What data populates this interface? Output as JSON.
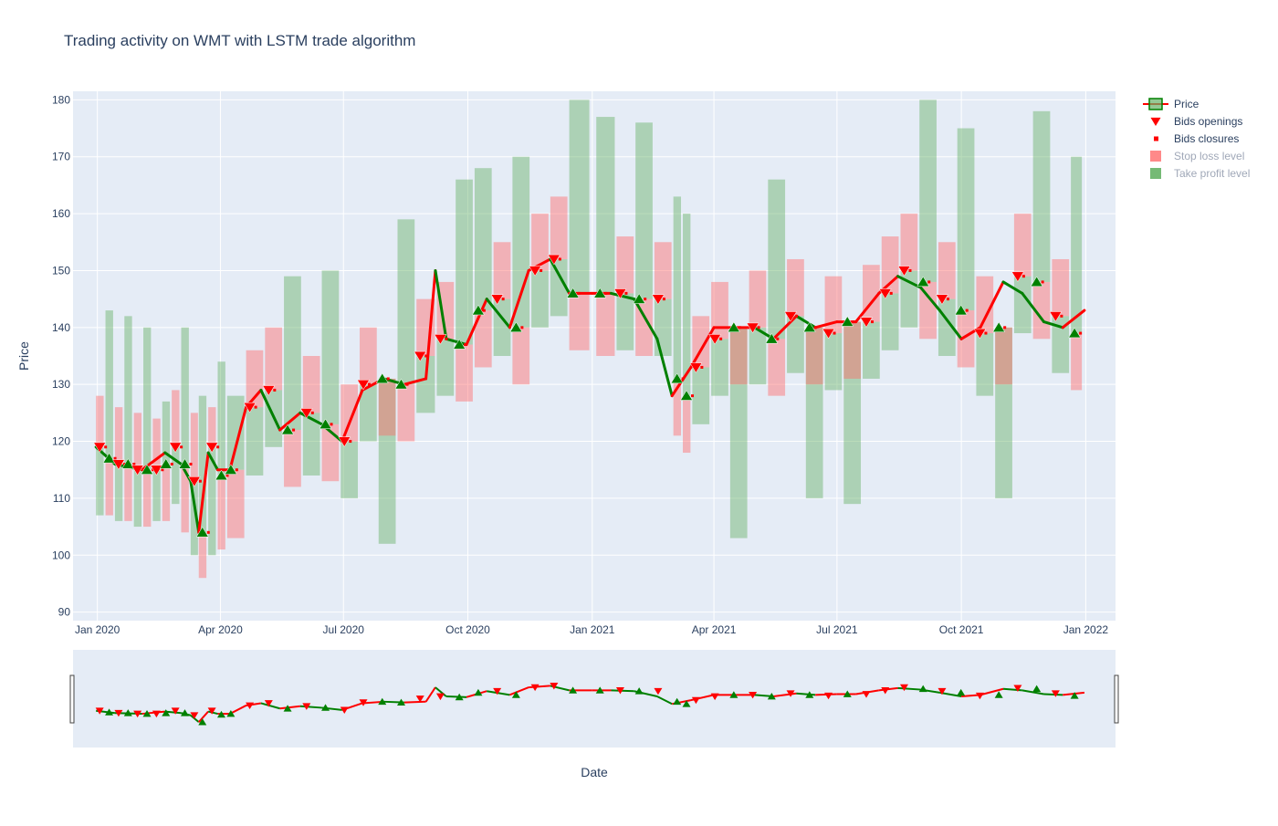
{
  "chart_data": {
    "type": "candlestick-trades",
    "title": "Trading activity on WMT with LSTM trade algorithm",
    "xlabel": "Date",
    "ylabel": "Price",
    "ylim": [
      88.5,
      181.5
    ],
    "xlim": [
      "2019-12-14",
      "2022-01-23"
    ],
    "grid": true,
    "legend_position": "top-right",
    "x_ticks": [
      "Jan 2020",
      "Apr 2020",
      "Jul 2020",
      "Oct 2020",
      "Jan 2021",
      "Apr 2021",
      "Jul 2021",
      "Oct 2021",
      "Jan 2022"
    ],
    "x_tick_dates": [
      "2020-01-01",
      "2020-04-01",
      "2020-07-01",
      "2020-10-01",
      "2021-01-01",
      "2021-04-01",
      "2021-07-01",
      "2021-10-01",
      "2022-01-01"
    ],
    "y_ticks": [
      90,
      100,
      110,
      120,
      130,
      140,
      150,
      160,
      170,
      180
    ],
    "colors": {
      "plot_bg": "#e5ecf6",
      "grid": "#ffffff",
      "long": "#008000",
      "short": "#ff0000",
      "stop_loss": "#ff6b6b",
      "take_profit": "#66b266",
      "text": "#2a3f5f",
      "legend_faded": "#a0a8b8"
    },
    "legend": [
      {
        "label": "Price",
        "symbol": "price",
        "faded": false
      },
      {
        "label": "Bids openings",
        "symbol": "triangle-down",
        "faded": false
      },
      {
        "label": "Bids closures",
        "symbol": "square",
        "faded": false
      },
      {
        "label": "Stop loss level",
        "symbol": "box-red",
        "faded": true
      },
      {
        "label": "Take profit level",
        "symbol": "box-green",
        "faded": true
      }
    ],
    "price_series": [
      [
        "2019-12-31",
        119
      ],
      [
        "2020-01-14",
        116
      ],
      [
        "2020-02-03",
        115
      ],
      [
        "2020-02-20",
        118
      ],
      [
        "2020-03-03",
        116
      ],
      [
        "2020-03-10",
        113
      ],
      [
        "2020-03-16",
        104
      ],
      [
        "2020-03-23",
        118
      ],
      [
        "2020-03-30",
        115
      ],
      [
        "2020-04-08",
        115
      ],
      [
        "2020-04-20",
        126
      ],
      [
        "2020-05-01",
        129
      ],
      [
        "2020-05-15",
        122
      ],
      [
        "2020-05-30",
        125
      ],
      [
        "2020-06-15",
        123
      ],
      [
        "2020-06-30",
        120
      ],
      [
        "2020-07-15",
        129
      ],
      [
        "2020-07-31",
        131
      ],
      [
        "2020-08-15",
        130
      ],
      [
        "2020-08-31",
        131
      ],
      [
        "2020-09-07",
        150
      ],
      [
        "2020-09-15",
        138
      ],
      [
        "2020-09-30",
        137
      ],
      [
        "2020-10-15",
        145
      ],
      [
        "2020-11-01",
        140
      ],
      [
        "2020-11-15",
        150
      ],
      [
        "2020-12-01",
        152
      ],
      [
        "2020-12-15",
        146
      ],
      [
        "2021-01-01",
        146
      ],
      [
        "2021-01-15",
        146
      ],
      [
        "2021-02-01",
        145
      ],
      [
        "2021-02-18",
        138
      ],
      [
        "2021-03-01",
        128
      ],
      [
        "2021-03-15",
        133
      ],
      [
        "2021-04-01",
        140
      ],
      [
        "2021-04-15",
        140
      ],
      [
        "2021-05-01",
        140
      ],
      [
        "2021-05-15",
        138
      ],
      [
        "2021-06-01",
        142
      ],
      [
        "2021-06-15",
        140
      ],
      [
        "2021-07-01",
        141
      ],
      [
        "2021-07-15",
        141
      ],
      [
        "2021-08-01",
        146
      ],
      [
        "2021-08-15",
        149
      ],
      [
        "2021-09-01",
        147
      ],
      [
        "2021-09-15",
        143
      ],
      [
        "2021-10-01",
        138
      ],
      [
        "2021-10-15",
        140
      ],
      [
        "2021-11-01",
        148
      ],
      [
        "2021-11-15",
        146
      ],
      [
        "2021-12-01",
        141
      ],
      [
        "2021-12-15",
        140
      ],
      [
        "2021-12-31",
        143
      ]
    ],
    "trades": [
      {
        "date": "2019-12-31",
        "price": 119,
        "side": "short",
        "sl": 128,
        "tp": 107
      },
      {
        "date": "2020-01-07",
        "price": 117,
        "side": "long",
        "sl": 107,
        "tp": 143
      },
      {
        "date": "2020-01-14",
        "price": 116,
        "side": "short",
        "sl": 126,
        "tp": 106
      },
      {
        "date": "2020-01-21",
        "price": 116,
        "side": "long",
        "sl": 106,
        "tp": 142
      },
      {
        "date": "2020-01-28",
        "price": 115,
        "side": "short",
        "sl": 125,
        "tp": 105
      },
      {
        "date": "2020-02-04",
        "price": 115,
        "side": "long",
        "sl": 105,
        "tp": 140
      },
      {
        "date": "2020-02-11",
        "price": 115,
        "side": "short",
        "sl": 124,
        "tp": 106
      },
      {
        "date": "2020-02-18",
        "price": 116,
        "side": "long",
        "sl": 106,
        "tp": 127
      },
      {
        "date": "2020-02-25",
        "price": 119,
        "side": "short",
        "sl": 129,
        "tp": 109
      },
      {
        "date": "2020-03-03",
        "price": 116,
        "side": "long",
        "sl": 104,
        "tp": 140
      },
      {
        "date": "2020-03-10",
        "price": 113,
        "side": "short",
        "sl": 125,
        "tp": 100
      },
      {
        "date": "2020-03-16",
        "price": 104,
        "side": "long",
        "sl": 96,
        "tp": 128
      },
      {
        "date": "2020-03-23",
        "price": 119,
        "side": "short",
        "sl": 126,
        "tp": 100
      },
      {
        "date": "2020-03-30",
        "price": 114,
        "side": "long",
        "sl": 101,
        "tp": 134
      },
      {
        "date": "2020-04-06",
        "price": 115,
        "side": "long",
        "sl": 103,
        "tp": 128
      },
      {
        "date": "2020-04-20",
        "price": 126,
        "side": "short",
        "sl": 136,
        "tp": 114
      },
      {
        "date": "2020-05-04",
        "price": 129,
        "side": "short",
        "sl": 140,
        "tp": 119
      },
      {
        "date": "2020-05-18",
        "price": 122,
        "side": "long",
        "sl": 112,
        "tp": 149
      },
      {
        "date": "2020-06-01",
        "price": 125,
        "side": "short",
        "sl": 135,
        "tp": 114
      },
      {
        "date": "2020-06-15",
        "price": 123,
        "side": "long",
        "sl": 113,
        "tp": 150
      },
      {
        "date": "2020-06-29",
        "price": 120,
        "side": "short",
        "sl": 130,
        "tp": 110
      },
      {
        "date": "2020-07-13",
        "price": 130,
        "side": "short",
        "sl": 140,
        "tp": 120
      },
      {
        "date": "2020-07-27",
        "price": 131,
        "side": "long",
        "sl": 121,
        "tp": 102
      },
      {
        "date": "2020-08-10",
        "price": 130,
        "side": "long",
        "sl": 120,
        "tp": 159
      },
      {
        "date": "2020-08-24",
        "price": 135,
        "side": "short",
        "sl": 145,
        "tp": 125
      },
      {
        "date": "2020-09-08",
        "price": 138,
        "side": "short",
        "sl": 148,
        "tp": 128
      },
      {
        "date": "2020-09-22",
        "price": 137,
        "side": "long",
        "sl": 127,
        "tp": 166
      },
      {
        "date": "2020-10-06",
        "price": 143,
        "side": "long",
        "sl": 133,
        "tp": 168
      },
      {
        "date": "2020-10-20",
        "price": 145,
        "side": "short",
        "sl": 155,
        "tp": 135
      },
      {
        "date": "2020-11-03",
        "price": 140,
        "side": "long",
        "sl": 130,
        "tp": 170
      },
      {
        "date": "2020-11-17",
        "price": 150,
        "side": "short",
        "sl": 160,
        "tp": 140
      },
      {
        "date": "2020-12-01",
        "price": 152,
        "side": "short",
        "sl": 163,
        "tp": 142
      },
      {
        "date": "2020-12-15",
        "price": 146,
        "side": "long",
        "sl": 136,
        "tp": 180
      },
      {
        "date": "2021-01-04",
        "price": 146,
        "side": "long",
        "sl": 135,
        "tp": 177
      },
      {
        "date": "2021-01-19",
        "price": 146,
        "side": "short",
        "sl": 156,
        "tp": 136
      },
      {
        "date": "2021-02-02",
        "price": 145,
        "side": "long",
        "sl": 135,
        "tp": 176
      },
      {
        "date": "2021-02-16",
        "price": 145,
        "side": "short",
        "sl": 155,
        "tp": 135
      },
      {
        "date": "2021-03-02",
        "price": 131,
        "side": "long",
        "sl": 121,
        "tp": 163
      },
      {
        "date": "2021-03-09",
        "price": 128,
        "side": "long",
        "sl": 118,
        "tp": 160
      },
      {
        "date": "2021-03-16",
        "price": 133,
        "side": "short",
        "sl": 142,
        "tp": 123
      },
      {
        "date": "2021-03-30",
        "price": 138,
        "side": "short",
        "sl": 148,
        "tp": 128
      },
      {
        "date": "2021-04-13",
        "price": 140,
        "side": "long",
        "sl": 130,
        "tp": 103
      },
      {
        "date": "2021-04-27",
        "price": 140,
        "side": "short",
        "sl": 150,
        "tp": 130
      },
      {
        "date": "2021-05-11",
        "price": 138,
        "side": "long",
        "sl": 128,
        "tp": 166
      },
      {
        "date": "2021-05-25",
        "price": 142,
        "side": "short",
        "sl": 152,
        "tp": 132
      },
      {
        "date": "2021-06-08",
        "price": 140,
        "side": "long",
        "sl": 130,
        "tp": 110
      },
      {
        "date": "2021-06-22",
        "price": 139,
        "side": "short",
        "sl": 149,
        "tp": 129
      },
      {
        "date": "2021-07-06",
        "price": 141,
        "side": "long",
        "sl": 131,
        "tp": 109
      },
      {
        "date": "2021-07-20",
        "price": 141,
        "side": "short",
        "sl": 151,
        "tp": 131
      },
      {
        "date": "2021-08-03",
        "price": 146,
        "side": "short",
        "sl": 156,
        "tp": 136
      },
      {
        "date": "2021-08-17",
        "price": 150,
        "side": "short",
        "sl": 160,
        "tp": 140
      },
      {
        "date": "2021-08-31",
        "price": 148,
        "side": "long",
        "sl": 138,
        "tp": 180
      },
      {
        "date": "2021-09-14",
        "price": 145,
        "side": "short",
        "sl": 155,
        "tp": 135
      },
      {
        "date": "2021-09-28",
        "price": 143,
        "side": "long",
        "sl": 133,
        "tp": 175
      },
      {
        "date": "2021-10-12",
        "price": 139,
        "side": "short",
        "sl": 149,
        "tp": 128
      },
      {
        "date": "2021-10-26",
        "price": 140,
        "side": "long",
        "sl": 130,
        "tp": 110
      },
      {
        "date": "2021-11-09",
        "price": 149,
        "side": "short",
        "sl": 160,
        "tp": 139
      },
      {
        "date": "2021-11-23",
        "price": 148,
        "side": "long",
        "sl": 138,
        "tp": 178
      },
      {
        "date": "2021-12-07",
        "price": 142,
        "side": "short",
        "sl": 152,
        "tp": 132
      },
      {
        "date": "2021-12-21",
        "price": 139,
        "side": "long",
        "sl": 129,
        "tp": 170
      }
    ]
  }
}
